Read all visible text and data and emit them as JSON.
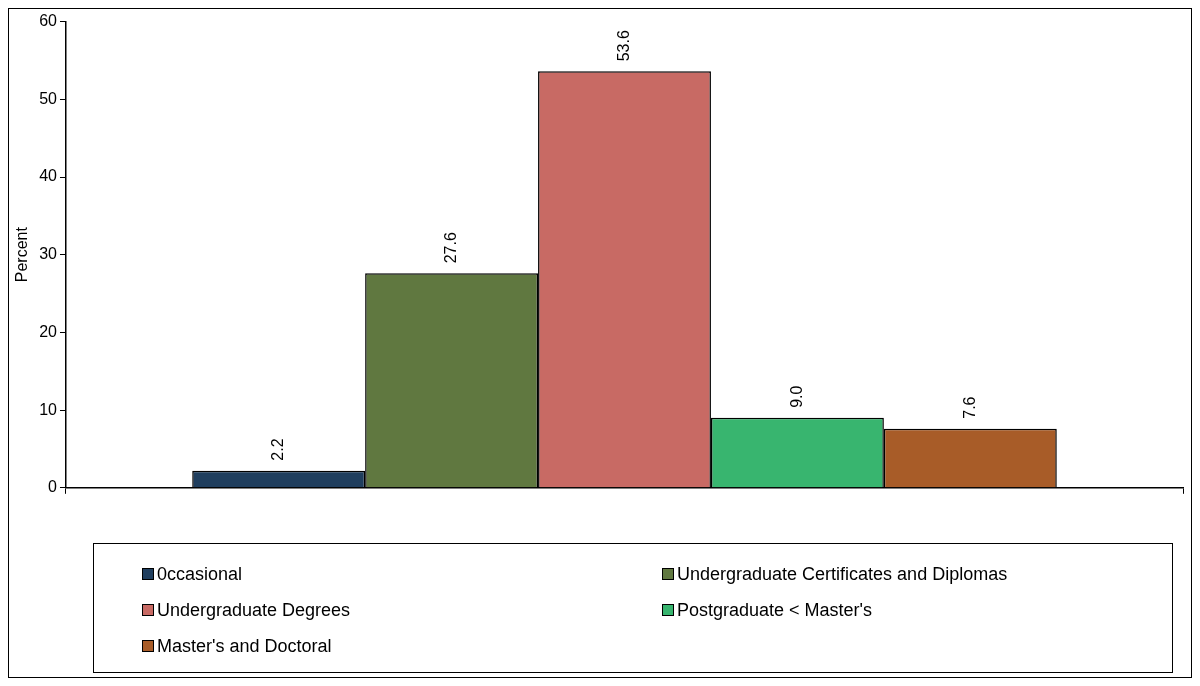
{
  "chart_data": {
    "type": "bar",
    "ylabel": "Percent",
    "categories": [
      null
    ],
    "series": [
      {
        "name": "0ccasional",
        "color": "#1f3e5e",
        "values": [
          2.2
        ],
        "value_labels": [
          "2.2"
        ]
      },
      {
        "name": "Undergraduate Certificates and Diplomas",
        "color": "#607840",
        "values": [
          27.6
        ],
        "value_labels": [
          "27.6"
        ]
      },
      {
        "name": "Undergraduate Degrees",
        "color": "#c86a64",
        "values": [
          53.6
        ],
        "value_labels": [
          "53.6"
        ]
      },
      {
        "name": "Postgraduate < Master's",
        "color": "#38b56f",
        "values": [
          9.0
        ],
        "value_labels": [
          "9.0"
        ]
      },
      {
        "name": "Master's and Doctoral",
        "color": "#a85c28",
        "values": [
          7.6
        ],
        "value_labels": [
          "7.6"
        ]
      }
    ],
    "ylim": [
      0,
      60
    ],
    "yticks": [
      0,
      10,
      20,
      30,
      40,
      50,
      60
    ],
    "grid": false,
    "legend": "bottom"
  }
}
